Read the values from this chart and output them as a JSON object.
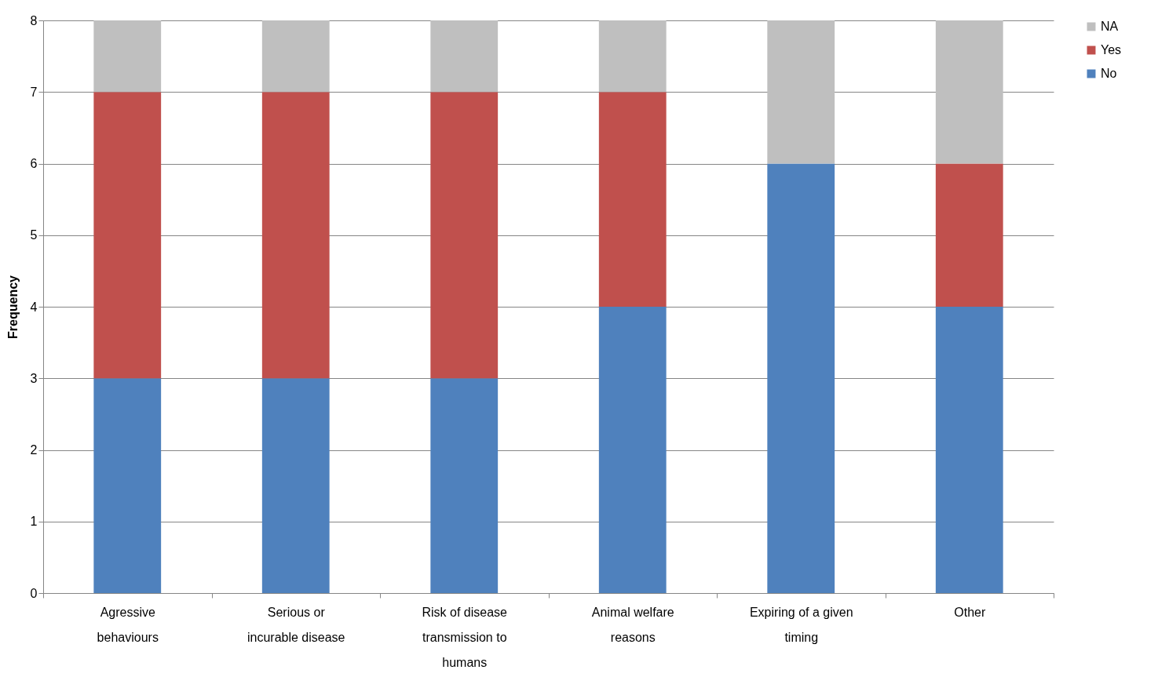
{
  "chart_data": {
    "type": "bar",
    "stacked": true,
    "ylabel": "Frequency",
    "categories": [
      "Agressive behaviours",
      "Serious or incurable disease",
      "Risk of disease transmission to humans",
      "Animal welfare reasons",
      "Expiring of a given timing",
      "Other"
    ],
    "series": [
      {
        "name": "No",
        "color": "#4f81bd",
        "values": [
          3,
          3,
          3,
          4,
          6,
          4
        ]
      },
      {
        "name": "Yes",
        "color": "#c0504d",
        "values": [
          4,
          4,
          4,
          3,
          0,
          2
        ]
      },
      {
        "name": "NA",
        "color": "#bfbfbf",
        "values": [
          1,
          1,
          1,
          1,
          2,
          2
        ]
      }
    ],
    "ylim": [
      0,
      8
    ],
    "yticks": [
      0,
      1,
      2,
      3,
      4,
      5,
      6,
      7,
      8
    ],
    "grid": "y",
    "legend": "right"
  }
}
